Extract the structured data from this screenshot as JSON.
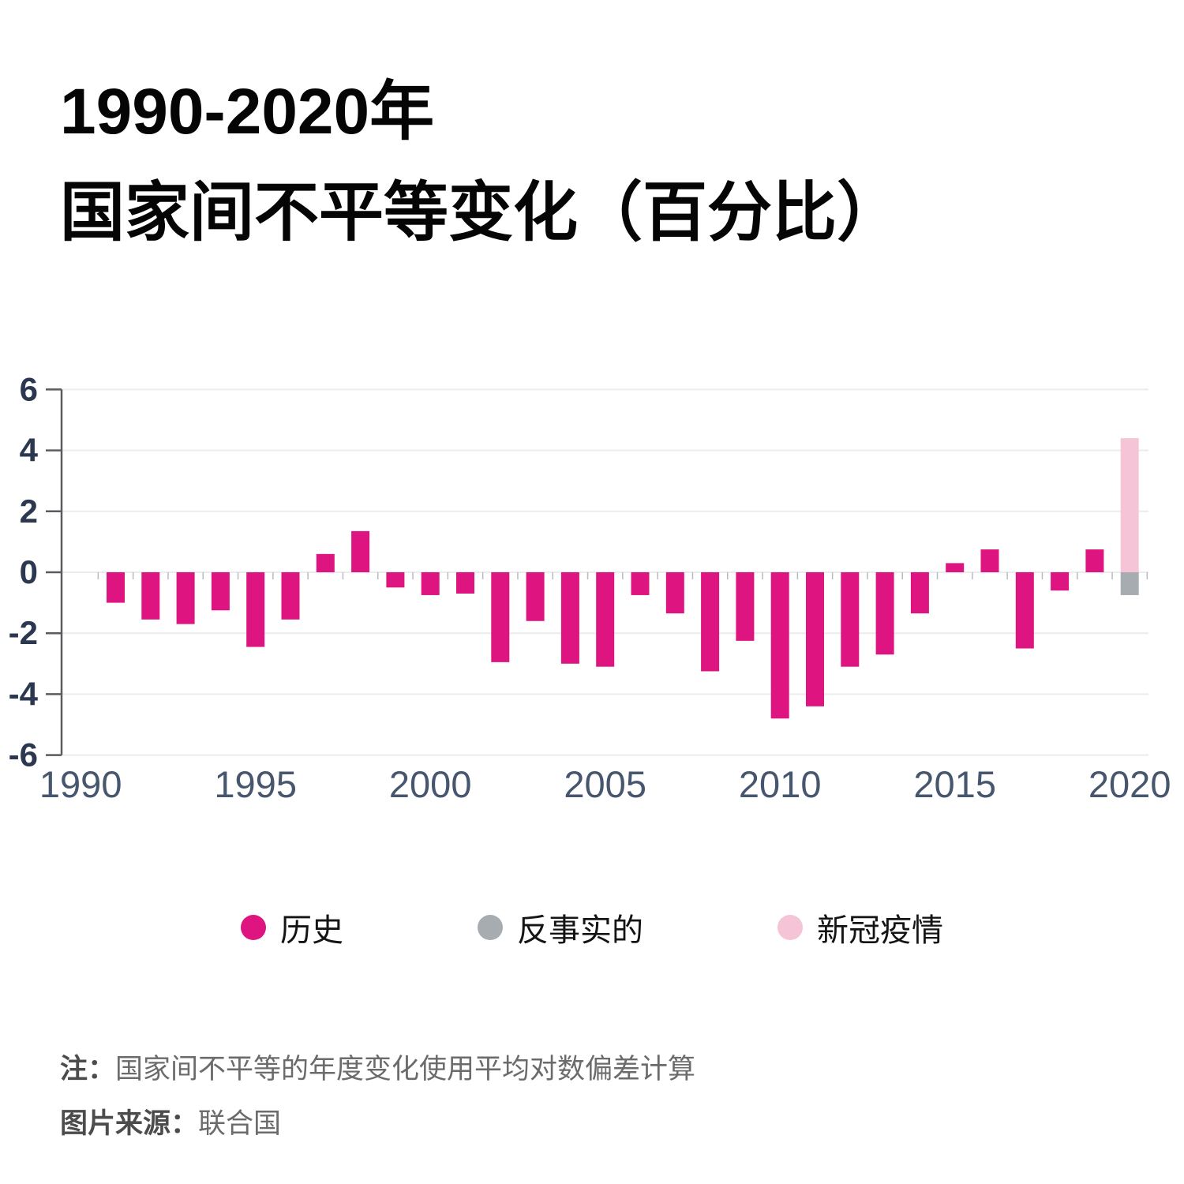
{
  "title": {
    "line1": "1990-2020年",
    "line2": "国家间不平等变化（百分比）"
  },
  "chart_data": {
    "type": "bar",
    "title": "1990-2020年 国家间不平等变化（百分比）",
    "xlabel": "",
    "ylabel": "",
    "ylim": [
      -6,
      6
    ],
    "yticks": [
      6,
      4,
      2,
      0,
      -2,
      -4,
      -6
    ],
    "xticks": [
      1990,
      1995,
      2000,
      2005,
      2010,
      2015,
      2020
    ],
    "grid": true,
    "legend_position": "bottom",
    "years": [
      1990,
      1991,
      1992,
      1993,
      1994,
      1995,
      1996,
      1997,
      1998,
      1999,
      2000,
      2001,
      2002,
      2003,
      2004,
      2005,
      2006,
      2007,
      2008,
      2009,
      2010,
      2011,
      2012,
      2013,
      2014,
      2015,
      2016,
      2017,
      2018,
      2019,
      2020
    ],
    "series": [
      {
        "name": "历史",
        "color": "#DE1480",
        "values": [
          null,
          -1.0,
          -1.55,
          -1.7,
          -1.25,
          -2.45,
          -1.55,
          0.6,
          1.35,
          -0.5,
          -0.75,
          -0.7,
          -2.95,
          -1.6,
          -3.0,
          -3.1,
          -0.75,
          -1.35,
          -3.25,
          -2.25,
          -4.8,
          -4.4,
          -3.1,
          -2.7,
          -1.35,
          0.3,
          0.75,
          -2.5,
          -0.6,
          0.75,
          null
        ]
      },
      {
        "name": "反事实的",
        "color": "#A7ACB1",
        "values": [
          null,
          null,
          null,
          null,
          null,
          null,
          null,
          null,
          null,
          null,
          null,
          null,
          null,
          null,
          null,
          null,
          null,
          null,
          null,
          null,
          null,
          null,
          null,
          null,
          null,
          null,
          null,
          null,
          null,
          null,
          -0.75
        ]
      },
      {
        "name": "新冠疫情",
        "color": "#F5C4D7",
        "values": [
          null,
          null,
          null,
          null,
          null,
          null,
          null,
          null,
          null,
          null,
          null,
          null,
          null,
          null,
          null,
          null,
          null,
          null,
          null,
          null,
          null,
          null,
          null,
          null,
          null,
          null,
          null,
          null,
          null,
          null,
          4.4
        ]
      }
    ]
  },
  "legend": {
    "items": [
      {
        "label": "历史",
        "color": "#DE1480"
      },
      {
        "label": "反事实的",
        "color": "#A7ACB1"
      },
      {
        "label": "新冠疫情",
        "color": "#F5C4D7"
      }
    ]
  },
  "notes": {
    "note_label": "注：",
    "note_text": "国家间不平等的年度变化使用平均对数偏差计算",
    "source_label": "图片来源：",
    "source_text": "联合国"
  }
}
